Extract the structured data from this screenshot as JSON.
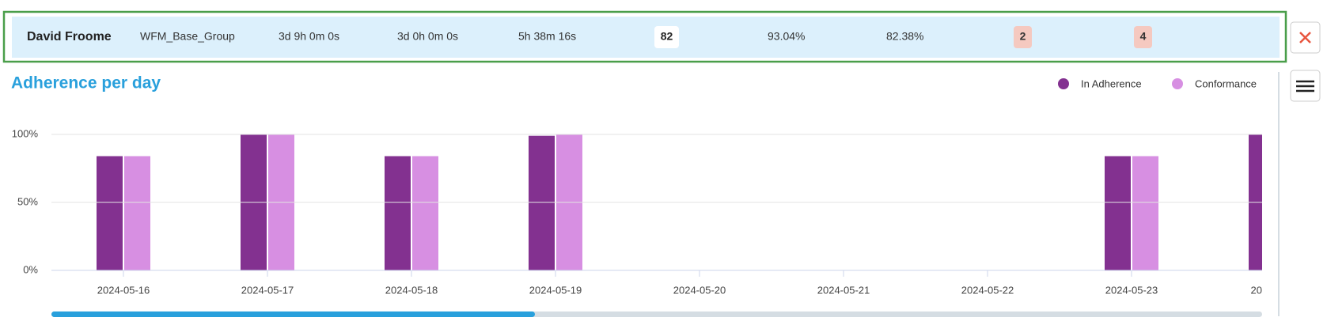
{
  "row": {
    "name": "David Froome",
    "group": "WFM_Base_Group",
    "scheduled": "3d 9h 0m 0s",
    "worked": "3d 0h 0m 0s",
    "exceptions": "5h 38m 16s",
    "score": "82",
    "adherence": "93.04%",
    "conformance": "82.38%",
    "badge_a": "2",
    "badge_b": "4"
  },
  "chart_data": {
    "type": "bar",
    "title": "Adherence per day",
    "categories": [
      "2024-05-16",
      "2024-05-17",
      "2024-05-18",
      "2024-05-19",
      "2024-05-20",
      "2024-05-21",
      "2024-05-22",
      "2024-05-23",
      "20"
    ],
    "series": [
      {
        "name": "In Adherence",
        "color": "#833190",
        "values": [
          84,
          100,
          84,
          99,
          null,
          null,
          null,
          84,
          100
        ]
      },
      {
        "name": "Conformance",
        "color": "#d78fe2",
        "values": [
          84,
          100,
          84,
          100,
          null,
          null,
          null,
          84,
          null
        ]
      }
    ],
    "ylim": [
      0,
      100
    ],
    "yticks": [
      {
        "value": 0,
        "label": "0%"
      },
      {
        "value": 50,
        "label": "50%"
      },
      {
        "value": 100,
        "label": "100%"
      }
    ],
    "grid": true
  }
}
